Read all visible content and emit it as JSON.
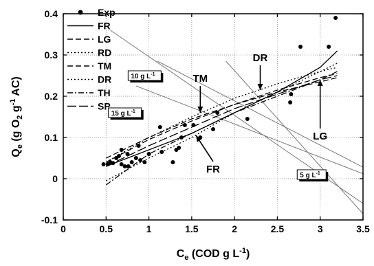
{
  "chart_data": {
    "type": "scatter",
    "title": "",
    "xlabel": {
      "main": "C",
      "sub": "e",
      "rest": " (COD g L",
      "sup": "-1",
      "end": ")"
    },
    "ylabel": {
      "main": "Q",
      "sub": "e",
      "mid": " (g O",
      "sub2": "2",
      "mid2": " g",
      "sup": "-1",
      "end": " AC)"
    },
    "xlim": [
      0,
      3.5
    ],
    "ylim": [
      -0.1,
      0.4
    ],
    "xticks": [
      0,
      0.5,
      1,
      1.5,
      2,
      2.5,
      3,
      3.5
    ],
    "xtick_labels": [
      "0",
      "0.5",
      "1",
      "1.5",
      "2",
      "2.5",
      "3",
      "3.5"
    ],
    "yticks": [
      -0.1,
      0,
      0.1,
      0.2,
      0.3,
      0.4
    ],
    "ytick_labels": [
      "-0.1",
      "0",
      "0.1",
      "0.2",
      "0.3",
      "0.4"
    ],
    "grid": true,
    "legend_position": "top-left",
    "legend": [
      {
        "name": "Exp",
        "style": "dot"
      },
      {
        "name": "FR",
        "style": "solid"
      },
      {
        "name": "LG",
        "style": "dash"
      },
      {
        "name": "RD",
        "style": "dot-line"
      },
      {
        "name": "TM",
        "style": "dash"
      },
      {
        "name": "DR",
        "style": "dot-line"
      },
      {
        "name": "TH",
        "style": "dashdot"
      },
      {
        "name": "SP",
        "style": "longdash"
      }
    ],
    "scatter": [
      [
        0.47,
        0.035
      ],
      [
        0.52,
        0.035
      ],
      [
        0.55,
        0.04
      ],
      [
        0.58,
        0.038
      ],
      [
        0.62,
        0.05
      ],
      [
        0.65,
        0.055
      ],
      [
        0.68,
        0.07
      ],
      [
        0.68,
        0.035
      ],
      [
        0.72,
        0.03
      ],
      [
        0.75,
        0.06
      ],
      [
        0.76,
        0.03
      ],
      [
        0.8,
        0.04
      ],
      [
        0.85,
        0.05
      ],
      [
        0.88,
        0.08
      ],
      [
        0.9,
        0.045
      ],
      [
        0.95,
        0.04
      ],
      [
        1.0,
        0.06
      ],
      [
        1.13,
        0.125
      ],
      [
        1.15,
        0.065
      ],
      [
        1.28,
        0.04
      ],
      [
        1.32,
        0.07
      ],
      [
        1.35,
        0.075
      ],
      [
        1.38,
        0.1
      ],
      [
        1.42,
        0.13
      ],
      [
        1.52,
        0.13
      ],
      [
        1.6,
        0.1
      ],
      [
        1.75,
        0.12
      ],
      [
        1.8,
        0.16
      ],
      [
        2.15,
        0.145
      ],
      [
        2.65,
        0.185
      ],
      [
        2.66,
        0.205
      ],
      [
        2.77,
        0.32
      ],
      [
        3.1,
        0.32
      ],
      [
        3.18,
        0.39
      ]
    ],
    "series": [
      {
        "name": "FR",
        "style": "solid",
        "x": [
          0.5,
          1.0,
          1.5,
          2.0,
          2.5,
          3.0,
          3.2
        ],
        "y": [
          0.03,
          0.07,
          0.11,
          0.16,
          0.21,
          0.27,
          0.31
        ]
      },
      {
        "name": "LG",
        "style": "dash",
        "x": [
          0.5,
          1.0,
          1.5,
          2.0,
          2.5,
          3.0,
          3.2
        ],
        "y": [
          0.05,
          0.1,
          0.145,
          0.18,
          0.21,
          0.235,
          0.245
        ]
      },
      {
        "name": "RD",
        "style": "dot-line",
        "x": [
          0.5,
          1.0,
          1.5,
          2.0,
          2.5,
          3.0,
          3.2
        ],
        "y": [
          -0.005,
          0.05,
          0.1,
          0.16,
          0.21,
          0.26,
          0.28
        ]
      },
      {
        "name": "TM",
        "style": "dash",
        "x": [
          0.5,
          1.0,
          1.5,
          2.0,
          2.5,
          3.0,
          3.2
        ],
        "y": [
          0.04,
          0.095,
          0.14,
          0.18,
          0.215,
          0.245,
          0.255
        ]
      },
      {
        "name": "DR",
        "style": "dot-line",
        "x": [
          0.5,
          1.0,
          1.5,
          2.0,
          2.5,
          3.0,
          3.2
        ],
        "y": [
          0.04,
          0.1,
          0.15,
          0.195,
          0.23,
          0.26,
          0.27
        ]
      },
      {
        "name": "TH",
        "style": "dashdot",
        "x": [
          0.5,
          1.0,
          1.5,
          2.0,
          2.5,
          3.0,
          3.2
        ],
        "y": [
          -0.015,
          0.06,
          0.11,
          0.16,
          0.2,
          0.24,
          0.26
        ]
      },
      {
        "name": "SP",
        "style": "longdash",
        "x": [
          0.5,
          1.0,
          1.5,
          2.0,
          2.5,
          3.0,
          3.2
        ],
        "y": [
          0.03,
          0.08,
          0.125,
          0.17,
          0.205,
          0.24,
          0.25
        ]
      }
    ],
    "guide_lines": [
      {
        "x": [
          0.55,
          3.5
        ],
        "y": [
          0.36,
          -0.06
        ]
      },
      {
        "x": [
          1.9,
          3.5
        ],
        "y": [
          0.285,
          -0.085
        ]
      },
      {
        "x": [
          1.1,
          3.5
        ],
        "y": [
          0.285,
          0.028
        ]
      },
      {
        "x": [
          0.85,
          3.5
        ],
        "y": [
          0.225,
          0.012
        ]
      }
    ],
    "annotations": [
      {
        "text": "TM",
        "x": 1.6,
        "y": 0.235,
        "arrow_to": [
          1.6,
          0.16
        ]
      },
      {
        "text": "DR",
        "x": 2.3,
        "y": 0.285,
        "arrow_to": [
          2.3,
          0.215
        ]
      },
      {
        "text": "LG",
        "x": 3.0,
        "y": 0.095,
        "arrow_to": [
          3.0,
          0.24
        ]
      },
      {
        "text": "FR",
        "x": 1.75,
        "y": 0.015,
        "arrow_to": [
          1.55,
          0.105
        ]
      }
    ],
    "conc_labels": [
      {
        "text": "10 g L",
        "sup": "-1",
        "x": 0.95,
        "y": 0.25
      },
      {
        "text": "15 g L",
        "sup": "-1",
        "x": 0.72,
        "y": 0.16
      },
      {
        "text": "5 g L",
        "sup": "-1",
        "x": 2.9,
        "y": 0.01
      }
    ]
  }
}
